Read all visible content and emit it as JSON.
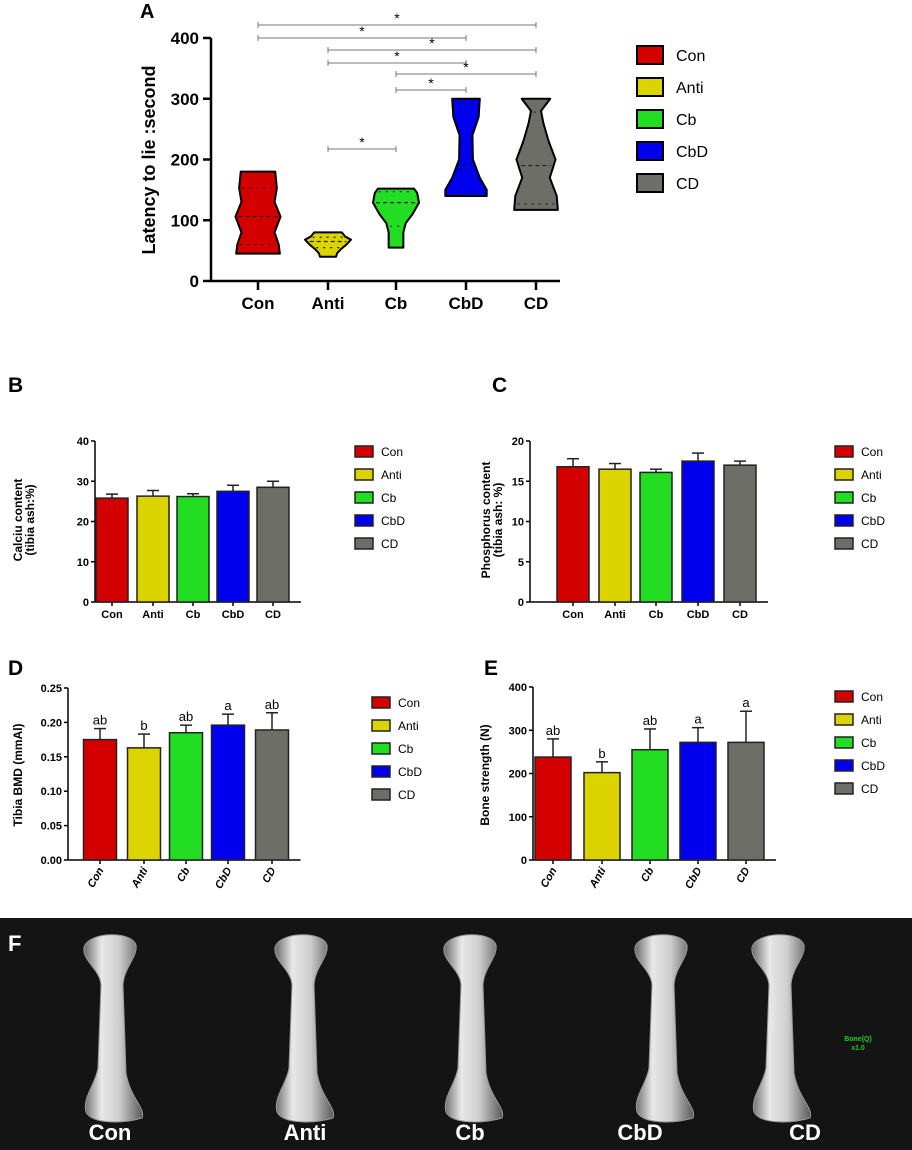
{
  "colors": {
    "Con": "#d40000",
    "Anti": "#dcd400",
    "Cb": "#22dd22",
    "CbD": "#0000ee",
    "CD": "#6e6e68"
  },
  "legend": [
    "Con",
    "Anti",
    "Cb",
    "CbD",
    "CD"
  ],
  "chart_data": [
    {
      "panel": "A",
      "type": "violin",
      "ylabel": "Latency to lie :second",
      "ylim": [
        0,
        400
      ],
      "yticks": [
        "0",
        "100",
        "200",
        "300",
        "400"
      ],
      "categories": [
        "Con",
        "Anti",
        "Cb",
        "CbD",
        "CD"
      ],
      "series": [
        {
          "group": "Con",
          "min": 45,
          "q1": 60,
          "median": 106,
          "q3": 153,
          "max": 180
        },
        {
          "group": "Anti",
          "min": 40,
          "q1": 55,
          "median": 65,
          "q3": 72,
          "max": 80
        },
        {
          "group": "Cb",
          "min": 55,
          "q1": 90,
          "median": 129,
          "q3": 147,
          "max": 152
        },
        {
          "group": "CbD",
          "min": 140,
          "q1": 142,
          "median": 187,
          "q3": 291,
          "max": 300
        },
        {
          "group": "CD",
          "min": 117,
          "q1": 127,
          "median": 190,
          "q3": 278,
          "max": 300
        }
      ],
      "significance": [
        {
          "from": "Con",
          "to": "CD",
          "label": "*"
        },
        {
          "from": "Con",
          "to": "CbD",
          "label": "*"
        },
        {
          "from": "Anti",
          "to": "CD",
          "label": "*"
        },
        {
          "from": "Anti",
          "to": "CbD",
          "label": "*"
        },
        {
          "from": "Cb",
          "to": "CD",
          "label": "*"
        },
        {
          "from": "Cb",
          "to": "CbD",
          "label": "*"
        },
        {
          "from": "Anti",
          "to": "Cb",
          "label": "*"
        }
      ],
      "legend_placement": "right"
    },
    {
      "panel": "B",
      "type": "bar",
      "ylabel": [
        "Calciu content",
        "(tibia ash:%)"
      ],
      "ylim": [
        0,
        40
      ],
      "yticks": [
        "0",
        "10",
        "20",
        "30",
        "40"
      ],
      "categories": [
        "Con",
        "Anti",
        "Cb",
        "CbD",
        "CD"
      ],
      "values": [
        25.8,
        26.3,
        26.2,
        27.5,
        28.5
      ],
      "errors": [
        1.0,
        1.4,
        0.7,
        1.5,
        1.5
      ],
      "letters": [],
      "legend_placement": "right"
    },
    {
      "panel": "C",
      "type": "bar",
      "ylabel": [
        "Phosphorus content",
        "(tibia ash: %)"
      ],
      "ylim": [
        0,
        20
      ],
      "yticks": [
        "0",
        "5",
        "10",
        "15",
        "20"
      ],
      "categories": [
        "Con",
        "Anti",
        "Cb",
        "CbD",
        "CD"
      ],
      "values": [
        16.8,
        16.5,
        16.1,
        17.5,
        17.0
      ],
      "errors": [
        1.0,
        0.7,
        0.4,
        1.0,
        0.5
      ],
      "letters": [],
      "legend_placement": "right"
    },
    {
      "panel": "D",
      "type": "bar",
      "ylabel": [
        "Tibia BMD (mmAl)"
      ],
      "ylim": [
        0,
        0.25
      ],
      "yticks": [
        "0.00",
        "0.05",
        "0.10",
        "0.15",
        "0.20",
        "0.25"
      ],
      "categories": [
        "Con",
        "Anti",
        "Cb",
        "CbD",
        "CD"
      ],
      "values": [
        0.175,
        0.163,
        0.185,
        0.196,
        0.189
      ],
      "errors": [
        0.016,
        0.02,
        0.011,
        0.016,
        0.025
      ],
      "letters": [
        "ab",
        "b",
        "ab",
        "a",
        "ab"
      ],
      "legend_placement": "right"
    },
    {
      "panel": "E",
      "type": "bar",
      "ylabel": [
        "Bone strength (N)"
      ],
      "ylim": [
        0,
        400
      ],
      "yticks": [
        "0",
        "100",
        "200",
        "300",
        "400"
      ],
      "categories": [
        "Con",
        "Anti",
        "Cb",
        "CbD",
        "CD"
      ],
      "values": [
        238,
        202,
        255,
        272,
        272
      ],
      "errors": [
        42,
        25,
        48,
        34,
        72
      ],
      "letters": [
        "ab",
        "b",
        "ab",
        "a",
        "a"
      ],
      "legend_placement": "right"
    }
  ],
  "panel_f": {
    "letter": "F",
    "labels": [
      "Con",
      "Anti",
      "Cb",
      "CbD",
      "CD"
    ],
    "overlay": [
      "Bone(Q)",
      "x1.0"
    ],
    "overlay_color": "#22cc22"
  }
}
